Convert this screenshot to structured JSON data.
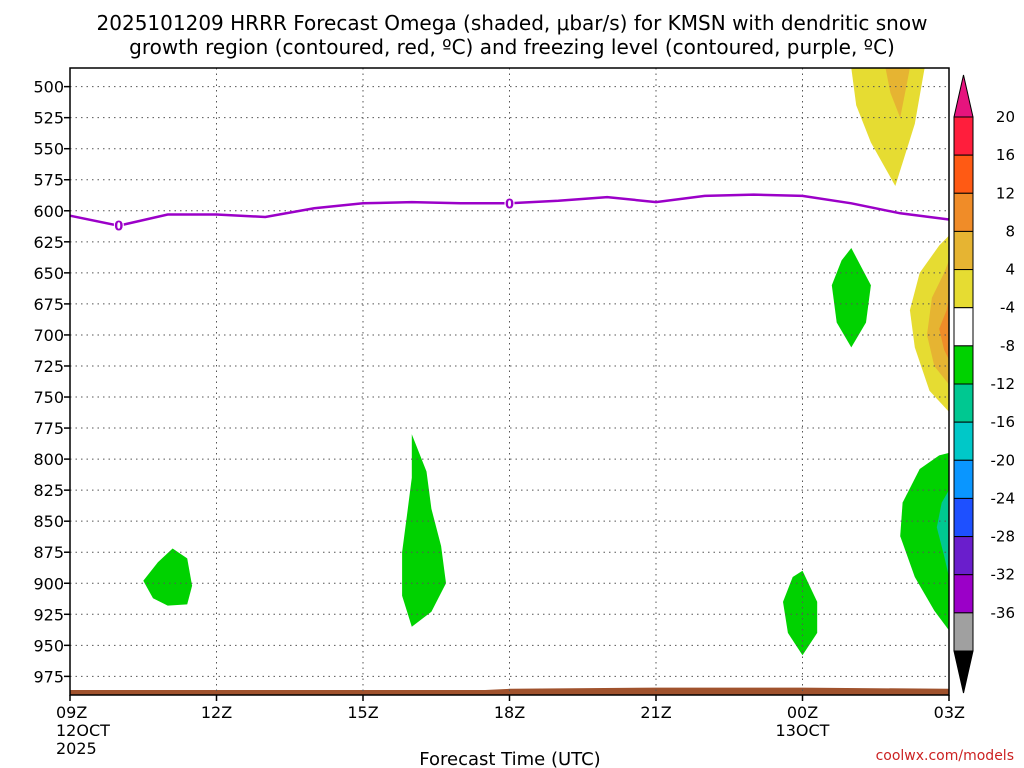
{
  "chart_data": {
    "type": "heatmap",
    "title_line1": "2025101209 HRRR Forecast Omega (shaded, μbar/s) for KMSN with dendritic snow",
    "title_line2": "growth region (contoured, red, ºC) and freezing level (contoured, purple, ºC)",
    "xlabel": "Forecast Time (UTC)",
    "credit": "coolwx.com/models",
    "y_ticks": [
      500,
      525,
      550,
      575,
      600,
      625,
      650,
      675,
      700,
      725,
      750,
      775,
      800,
      825,
      850,
      875,
      900,
      925,
      950,
      975
    ],
    "y_range": [
      485,
      990
    ],
    "x_range_hours": [
      0,
      18
    ],
    "x_ticks": [
      {
        "hour": 0,
        "label": "09Z",
        "sub": "12OCT",
        "sub2": "2025"
      },
      {
        "hour": 3,
        "label": "12Z",
        "sub": "",
        "sub2": ""
      },
      {
        "hour": 6,
        "label": "15Z",
        "sub": "",
        "sub2": ""
      },
      {
        "hour": 9,
        "label": "18Z",
        "sub": "",
        "sub2": ""
      },
      {
        "hour": 12,
        "label": "21Z",
        "sub": "",
        "sub2": ""
      },
      {
        "hour": 15,
        "label": "00Z",
        "sub": "13OCT",
        "sub2": ""
      },
      {
        "hour": 18,
        "label": "03Z",
        "sub": "",
        "sub2": ""
      }
    ],
    "colorbar": {
      "labels": [
        "20",
        "16",
        "12",
        "8",
        "4",
        "-4",
        "-8",
        "-12",
        "-16",
        "-20",
        "-24",
        "-28",
        "-32",
        "-36"
      ],
      "colors": [
        "#ff1e3c",
        "#ff5a14",
        "#f08c28",
        "#e6b432",
        "#e6dc32",
        "#ffffff",
        "#00d200",
        "#00c891",
        "#00c8c8",
        "#0a96ff",
        "#1e50ff",
        "#6a1ecc",
        "#9b00c8",
        "#a0a0a0"
      ],
      "top_color": "#e6147e",
      "bottom_color": "#000000"
    },
    "freezing_level": {
      "label": "0",
      "color": "#9b00c8",
      "hours": [
        0,
        1,
        2,
        3,
        4,
        5,
        6,
        7,
        8,
        9,
        10,
        11,
        12,
        13,
        14,
        15,
        16,
        17,
        18
      ],
      "pressure": [
        604,
        612,
        603,
        603,
        605,
        598,
        594,
        593,
        594,
        594,
        592,
        589,
        593,
        588,
        587,
        588,
        594,
        602,
        607
      ],
      "label_hours": [
        1,
        9
      ]
    },
    "terrain": {
      "color": "#a0522d",
      "hours": [
        0,
        3,
        6,
        8.5,
        9,
        12,
        15,
        18
      ],
      "pressure": [
        986,
        986,
        986,
        986,
        985,
        984,
        984,
        985
      ]
    },
    "omega_regions": [
      {
        "fill": "#00d200",
        "pts": [
          [
            1.5,
            898
          ],
          [
            1.8,
            883
          ],
          [
            2.1,
            872
          ],
          [
            2.4,
            880
          ],
          [
            2.5,
            902
          ],
          [
            2.4,
            917
          ],
          [
            2.0,
            918
          ],
          [
            1.7,
            912
          ]
        ]
      },
      {
        "fill": "#00d200",
        "pts": [
          [
            7.0,
            780
          ],
          [
            7.3,
            810
          ],
          [
            7.4,
            840
          ],
          [
            7.6,
            870
          ],
          [
            7.7,
            900
          ],
          [
            7.4,
            923
          ],
          [
            7.0,
            935
          ],
          [
            6.8,
            910
          ],
          [
            6.8,
            875
          ],
          [
            6.9,
            845
          ],
          [
            7.0,
            815
          ]
        ]
      },
      {
        "fill": "#00d200",
        "pts": [
          [
            15.0,
            890
          ],
          [
            15.3,
            915
          ],
          [
            15.3,
            940
          ],
          [
            15.0,
            958
          ],
          [
            14.7,
            940
          ],
          [
            14.6,
            915
          ],
          [
            14.8,
            895
          ]
        ]
      },
      {
        "fill": "#00d200",
        "pts": [
          [
            16.0,
            630
          ],
          [
            16.4,
            660
          ],
          [
            16.3,
            690
          ],
          [
            16.0,
            710
          ],
          [
            15.7,
            690
          ],
          [
            15.6,
            660
          ],
          [
            15.8,
            640
          ]
        ]
      },
      {
        "fill": "#e6dc32",
        "pts": [
          [
            16.0,
            485
          ],
          [
            17.5,
            485
          ],
          [
            17.3,
            530
          ],
          [
            16.9,
            580
          ],
          [
            16.4,
            545
          ],
          [
            16.1,
            515
          ]
        ]
      },
      {
        "fill": "#e6b432",
        "pts": [
          [
            16.7,
            485
          ],
          [
            17.2,
            485
          ],
          [
            17.1,
            505
          ],
          [
            17.0,
            525
          ],
          [
            16.8,
            505
          ]
        ]
      },
      {
        "fill": "#e6dc32",
        "pts": [
          [
            18.1,
            620
          ],
          [
            18.1,
            762
          ],
          [
            17.6,
            745
          ],
          [
            17.3,
            710
          ],
          [
            17.2,
            680
          ],
          [
            17.4,
            650
          ],
          [
            17.8,
            628
          ]
        ]
      },
      {
        "fill": "#e6b432",
        "pts": [
          [
            18.1,
            640
          ],
          [
            18.1,
            740
          ],
          [
            17.7,
            725
          ],
          [
            17.55,
            700
          ],
          [
            17.65,
            670
          ],
          [
            17.9,
            650
          ]
        ]
      },
      {
        "fill": "#f08c28",
        "pts": [
          [
            18.1,
            670
          ],
          [
            18.1,
            720
          ],
          [
            17.9,
            712
          ],
          [
            17.8,
            695
          ],
          [
            17.95,
            680
          ]
        ]
      },
      {
        "fill": "#ff5a14",
        "pts": [
          [
            18.1,
            688
          ],
          [
            18.1,
            708
          ],
          [
            18.0,
            700
          ]
        ]
      },
      {
        "fill": "#00d200",
        "pts": [
          [
            18.1,
            795
          ],
          [
            18.1,
            938
          ],
          [
            17.7,
            922
          ],
          [
            17.3,
            895
          ],
          [
            17.0,
            862
          ],
          [
            17.05,
            835
          ],
          [
            17.4,
            808
          ],
          [
            17.8,
            797
          ]
        ]
      },
      {
        "fill": "#00c891",
        "pts": [
          [
            18.1,
            825
          ],
          [
            18.1,
            895
          ],
          [
            17.9,
            878
          ],
          [
            17.75,
            855
          ],
          [
            17.85,
            835
          ]
        ]
      },
      {
        "fill": "#00c8c8",
        "pts": [
          [
            18.1,
            845
          ],
          [
            18.1,
            875
          ],
          [
            18.0,
            860
          ]
        ]
      }
    ]
  }
}
